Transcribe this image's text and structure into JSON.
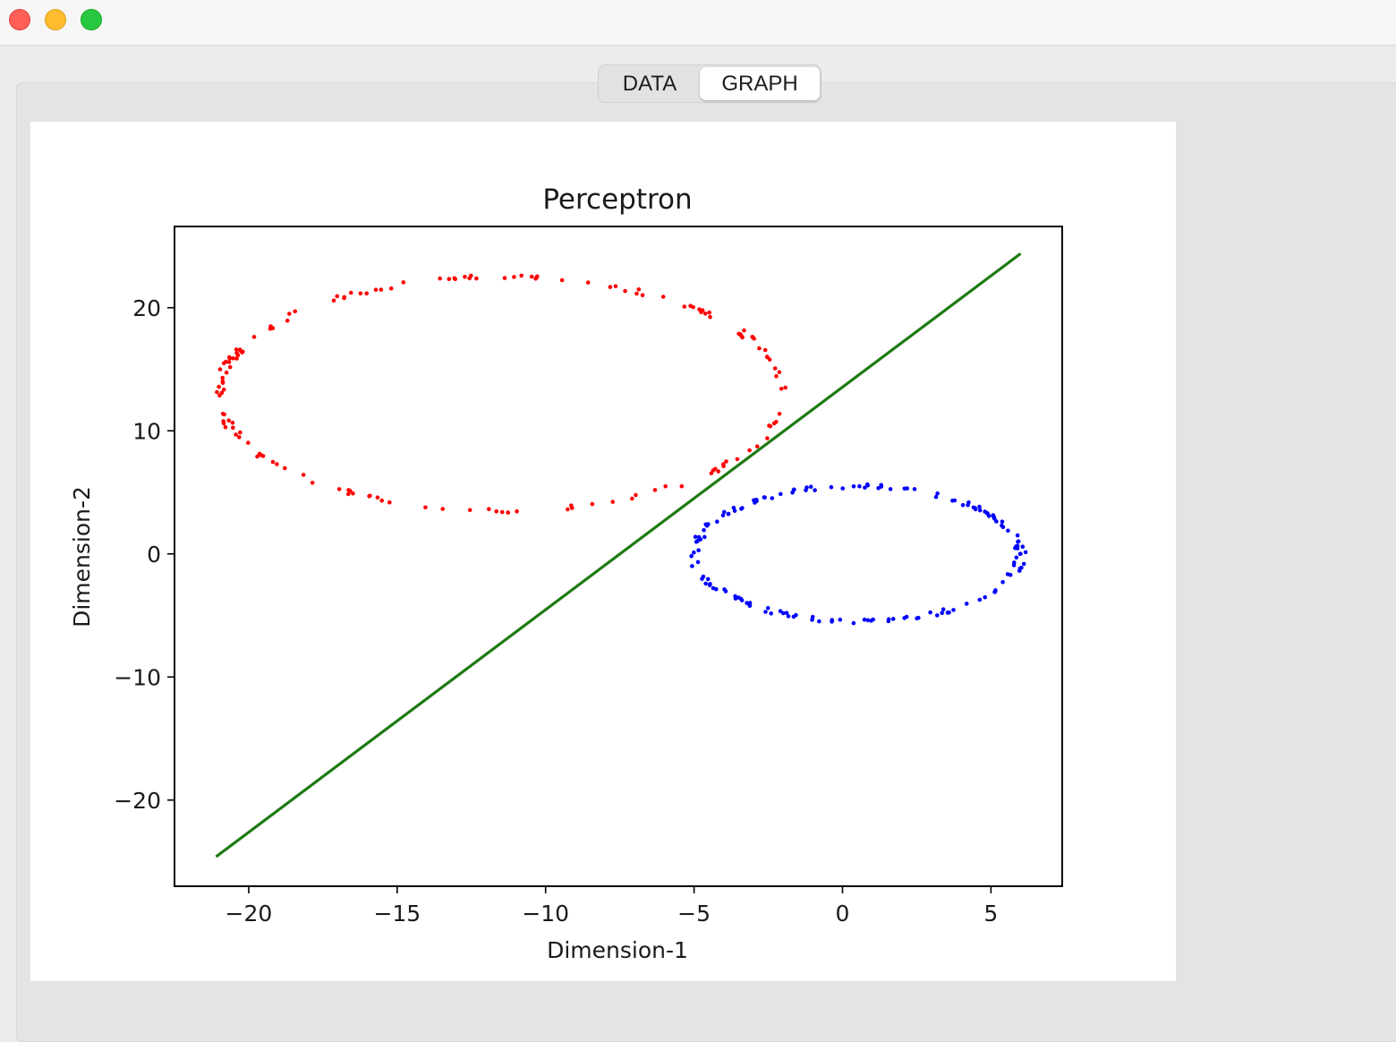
{
  "window": {
    "controls": [
      "close",
      "minimize",
      "zoom"
    ]
  },
  "tabs": [
    {
      "label": "DATA",
      "selected": false
    },
    {
      "label": "GRAPH",
      "selected": true
    }
  ],
  "colors": {
    "class_a": "#ff0000",
    "class_b": "#0000ff",
    "decision_line": "#1e7a12"
  },
  "chart_data": {
    "type": "scatter",
    "title": "Perceptron",
    "xlabel": "Dimension-1",
    "ylabel": "Dimension-2",
    "xlim": [
      -22.5,
      7.4
    ],
    "ylim": [
      -27.0,
      26.6
    ],
    "xticks": [
      -20,
      -15,
      -10,
      -5,
      0,
      5
    ],
    "xtick_labels": [
      "−20",
      "−15",
      "−10",
      "−5",
      "0",
      "5"
    ],
    "yticks": [
      -20,
      -10,
      0,
      10,
      20
    ],
    "ytick_labels": [
      "−20",
      "−10",
      "0",
      "10",
      "20"
    ],
    "grid": false,
    "series": [
      {
        "kind": "points",
        "color": "#ff0000",
        "shape": "ring",
        "center": [
          -11.5,
          13.0
        ],
        "radius_x": 9.5,
        "radius_y": 9.5,
        "count": 160
      },
      {
        "kind": "points",
        "color": "#0000ff",
        "shape": "ring",
        "center": [
          0.5,
          0.0
        ],
        "radius_x": 5.5,
        "radius_y": 5.5,
        "count": 160
      },
      {
        "kind": "line",
        "color": "#1e7a12",
        "x": [
          -21.1,
          6.0
        ],
        "y": [
          -24.6,
          24.4
        ]
      }
    ]
  }
}
